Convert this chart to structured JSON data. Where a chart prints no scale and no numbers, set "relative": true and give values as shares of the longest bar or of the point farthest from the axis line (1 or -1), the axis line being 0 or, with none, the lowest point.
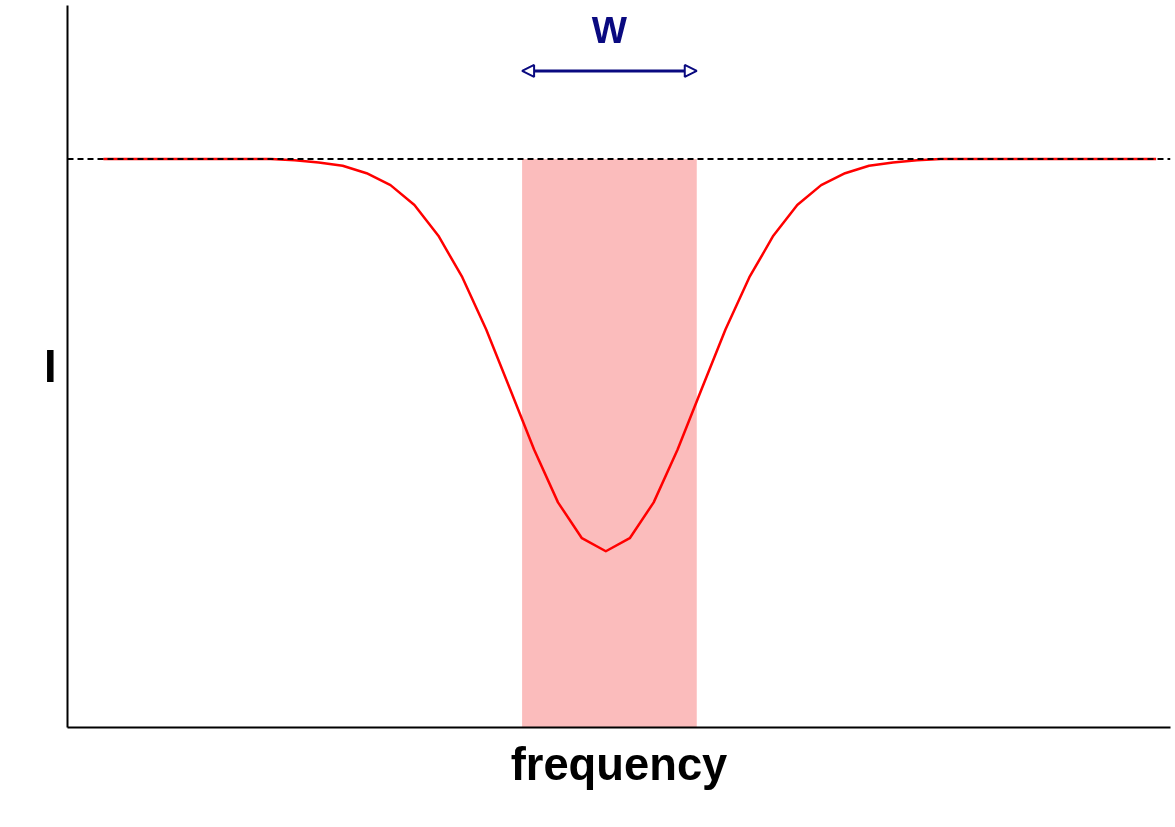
{
  "chart_data": {
    "type": "line",
    "relative": true,
    "xlabel": "frequency",
    "ylabel": "I",
    "categories": [
      null,
      null,
      null,
      null,
      null,
      null,
      null,
      null,
      null,
      null,
      null,
      null,
      null,
      null,
      null,
      null,
      null,
      null,
      null,
      null,
      null,
      null,
      null,
      null,
      null,
      null,
      null,
      null,
      null,
      null,
      null,
      null,
      null,
      null,
      null,
      null,
      null,
      null,
      null,
      null,
      null,
      null,
      null,
      null,
      null
    ],
    "series": [
      {
        "color": "#ff0000",
        "values": [
          1,
          1,
          1,
          1,
          1,
          1,
          1,
          1,
          0.998,
          0.994,
          0.988,
          0.975,
          0.954,
          0.919,
          0.865,
          0.792,
          0.7,
          0.595,
          0.489,
          0.396,
          0.333,
          0.31,
          0.333,
          0.396,
          0.489,
          0.595,
          0.7,
          0.792,
          0.865,
          0.919,
          0.954,
          0.975,
          0.988,
          0.994,
          0.998,
          1,
          1,
          1,
          1,
          1,
          1,
          1,
          1,
          1,
          1
        ]
      }
    ],
    "ref_lines": [
      {
        "axis": "y",
        "value": 1,
        "color": "#000000",
        "line_style": "dashed"
      }
    ],
    "annotations": [
      "W"
    ],
    "line_style": "solid",
    "marker": "none"
  }
}
